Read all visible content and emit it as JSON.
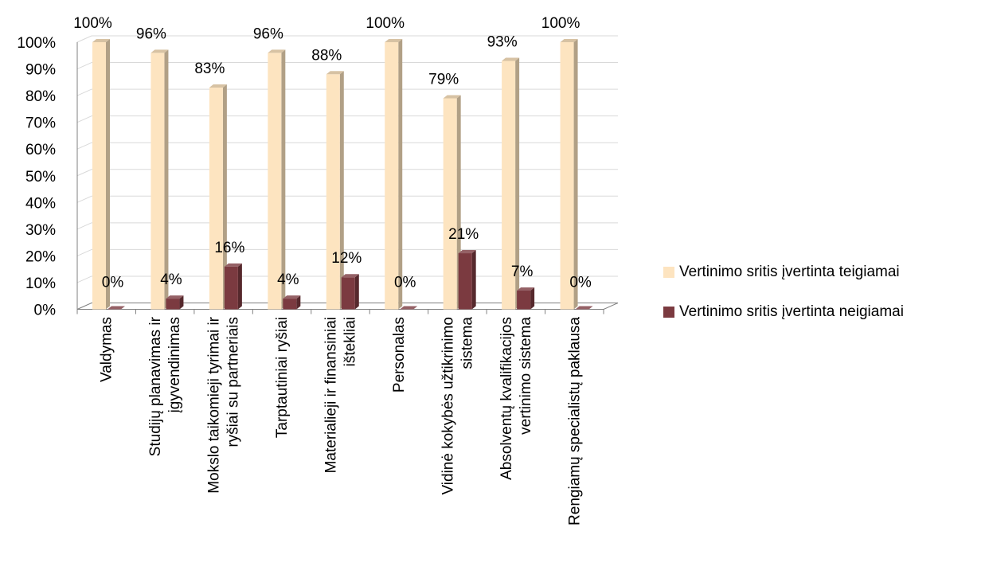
{
  "chart_data": {
    "type": "bar",
    "categories": [
      "Valdymas",
      "Studijų planavimas ir įgyvendinimas",
      "Mokslo taikomieji tyrimai ir ryšiai su partneriais",
      "Tarptautiniai ryšiai",
      "Materialieji ir finansiniai ištekliai",
      "Personalas",
      "Vidinė kokybės užtikrinimo sistema",
      "Absolventų kvalifikacijos vertinimo sistema",
      "Rengiamų specialistų paklausa"
    ],
    "category_lines": [
      [
        "Valdymas"
      ],
      [
        "Studijų planavimas ir",
        "įgyvendinimas"
      ],
      [
        "Mokslo taikomieji tyrimai ir",
        "ryšiai su partneriais"
      ],
      [
        "Tarptautiniai ryšiai"
      ],
      [
        "Materialieji ir finansiniai",
        "ištekliai"
      ],
      [
        "Personalas"
      ],
      [
        "Vidinė kokybės užtikrinimo",
        "sistema"
      ],
      [
        "Absolventų kvalifikacijos",
        "vertinimo sistema"
      ],
      [
        "Rengiamų specialistų paklausa"
      ]
    ],
    "series": [
      {
        "name": "Vertinimo sritis įvertinta teigiamai",
        "color": "#fde4c0",
        "values": [
          100,
          96,
          83,
          96,
          88,
          100,
          79,
          93,
          100
        ],
        "labels": [
          "100%",
          "96%",
          "83%",
          "96%",
          "88%",
          "100%",
          "79%",
          "93%",
          "100%"
        ]
      },
      {
        "name": "Vertinimo sritis įvertinta neigiamai",
        "color": "#7b3a40",
        "values": [
          0,
          4,
          16,
          4,
          12,
          0,
          21,
          7,
          0
        ],
        "labels": [
          "0%",
          "4%",
          "16%",
          "4%",
          "12%",
          "0%",
          "21%",
          "7%",
          "0%"
        ]
      }
    ],
    "yticks": [
      "0%",
      "10%",
      "20%",
      "30%",
      "40%",
      "50%",
      "60%",
      "70%",
      "80%",
      "90%",
      "100%"
    ],
    "ylim": [
      0,
      100
    ],
    "grid": true,
    "legend": "right",
    "title": "",
    "xlabel": "",
    "ylabel": ""
  }
}
